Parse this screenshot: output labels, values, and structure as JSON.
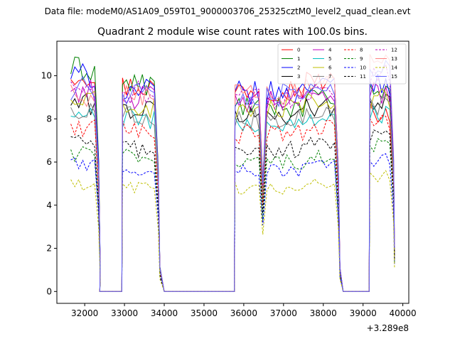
{
  "chart_data": {
    "type": "line",
    "suptitle": "Data file: modeM0/AS1A09_059T01_9000003706_25325cztM0_level2_quad_clean.evt",
    "title": "Quadrant 2 module wise count rates with 100.0s bins.",
    "xlabel": "",
    "ylabel": "",
    "x_offset_label": "+3.289e8",
    "xlim": [
      31300,
      40150
    ],
    "ylim": [
      -0.55,
      11.6
    ],
    "xticks": [
      32000,
      33000,
      34000,
      35000,
      36000,
      37000,
      38000,
      39000,
      40000
    ],
    "yticks": [
      0,
      2,
      4,
      6,
      8,
      10
    ],
    "legend_position": "top-right",
    "legend_columns": 4,
    "segments": [
      {
        "start": 31650,
        "bins": 8,
        "rises_from_zero": false
      },
      {
        "start": 32950,
        "bins": 10,
        "rises_from_zero": true
      },
      {
        "start": 35780,
        "bins": 27,
        "rises_from_zero": true
      },
      {
        "start": 39170,
        "bins": 7,
        "rises_from_zero": true
      }
    ],
    "gaps": [
      {
        "x": [
          32380,
          32900
        ],
        "value": 0
      },
      {
        "x": [
          34000,
          35750
        ],
        "value": 0
      },
      {
        "x": [
          38500,
          39150
        ],
        "value": 0
      }
    ],
    "series": [
      {
        "name": "0",
        "color": "#ff0000",
        "dashed": false,
        "levels": [
          10.1,
          9.5,
          9.4,
          8.3
        ]
      },
      {
        "name": "1",
        "color": "#008000",
        "dashed": false,
        "levels": [
          10.3,
          9.6,
          8.6,
          9.3
        ]
      },
      {
        "name": "2",
        "color": "#0000ff",
        "dashed": false,
        "levels": [
          10.0,
          9.3,
          9.2,
          9.6
        ]
      },
      {
        "name": "3",
        "color": "#000000",
        "dashed": false,
        "levels": [
          8.7,
          8.4,
          8.2,
          8.9
        ]
      },
      {
        "name": "4",
        "color": "#bf00bf",
        "dashed": false,
        "levels": [
          9.3,
          9.0,
          8.8,
          9.2
        ]
      },
      {
        "name": "5",
        "color": "#00bfbf",
        "dashed": false,
        "levels": [
          8.1,
          8.0,
          7.7,
          8.3
        ]
      },
      {
        "name": "6",
        "color": "#bfbf00",
        "dashed": false,
        "levels": [
          8.8,
          8.5,
          8.4,
          8.9
        ]
      },
      {
        "name": "7",
        "color": "#808080",
        "dashed": false,
        "levels": [
          8.4,
          8.2,
          8.0,
          8.6
        ]
      },
      {
        "name": "8",
        "color": "#ff0000",
        "dashed": true,
        "levels": [
          7.6,
          7.5,
          7.3,
          7.8
        ]
      },
      {
        "name": "9",
        "color": "#008000",
        "dashed": true,
        "levels": [
          6.4,
          6.3,
          6.0,
          6.7
        ]
      },
      {
        "name": "10",
        "color": "#0000ff",
        "dashed": true,
        "levels": [
          5.9,
          5.7,
          5.6,
          6.1
        ]
      },
      {
        "name": "11",
        "color": "#000000",
        "dashed": true,
        "levels": [
          6.9,
          6.6,
          6.6,
          7.1
        ]
      },
      {
        "name": "12",
        "color": "#bf00bf",
        "dashed": true,
        "levels": [
          9.3,
          9.2,
          8.9,
          10.0
        ]
      },
      {
        "name": "13",
        "color": "#ff8080",
        "dashed": false,
        "levels": [
          9.1,
          9.0,
          9.2,
          10.4
        ]
      },
      {
        "name": "14",
        "color": "#bfbf00",
        "dashed": true,
        "levels": [
          4.9,
          4.8,
          4.8,
          5.3
        ]
      },
      {
        "name": "15",
        "color": "#6060ff",
        "dashed": false,
        "levels": [
          9.4,
          9.2,
          9.1,
          10.1
        ]
      }
    ]
  }
}
